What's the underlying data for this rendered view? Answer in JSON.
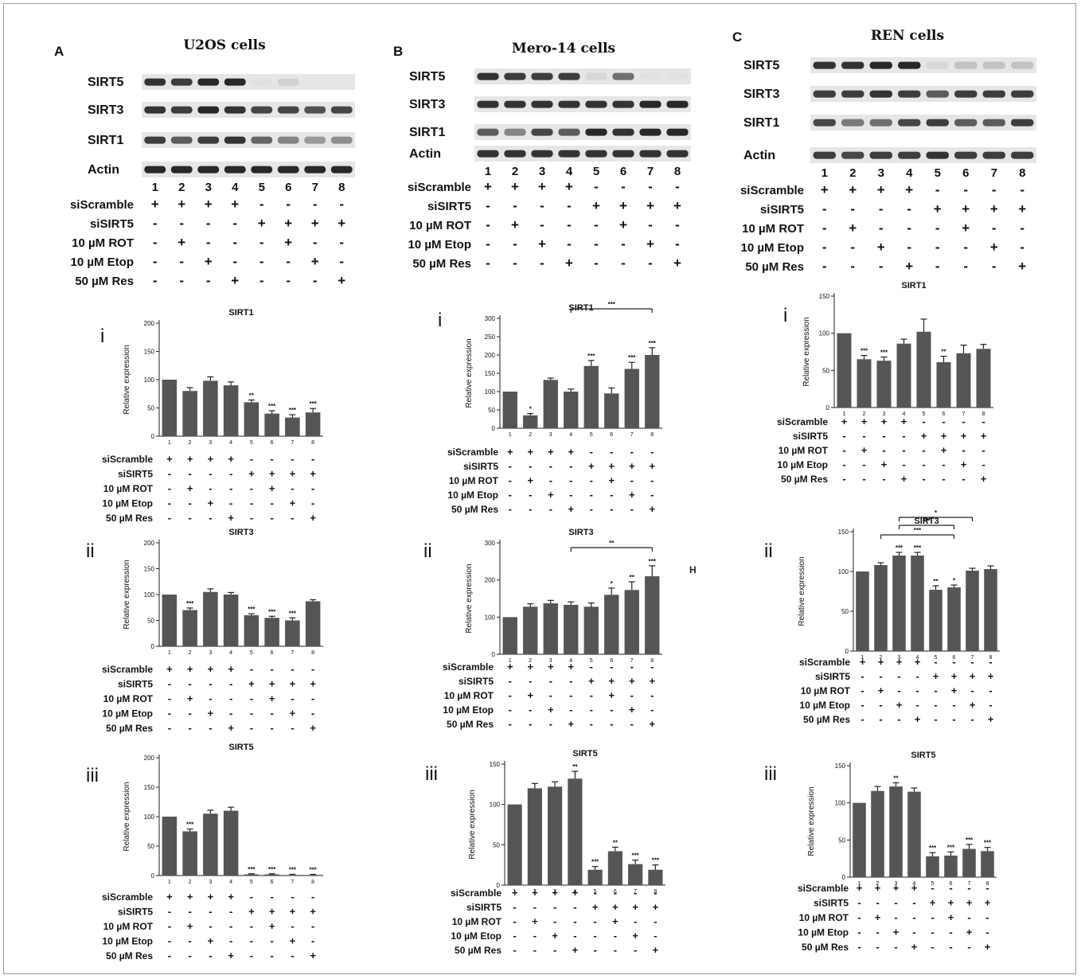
{
  "conditions": {
    "lane_numbers": [
      "1",
      "2",
      "3",
      "4",
      "5",
      "6",
      "7",
      "8"
    ],
    "rows": [
      {
        "label": "siScramble",
        "signs": [
          "+",
          "+",
          "+",
          "+",
          "-",
          "-",
          "-",
          "-"
        ]
      },
      {
        "label": "siSIRT5",
        "signs": [
          "-",
          "-",
          "-",
          "-",
          "+",
          "+",
          "+",
          "+"
        ]
      },
      {
        "label": "10 µM ROT",
        "signs": [
          "-",
          "+",
          "-",
          "-",
          "-",
          "+",
          "-",
          "-"
        ]
      },
      {
        "label": "10 µM Etop",
        "signs": [
          "-",
          "-",
          "+",
          "-",
          "-",
          "-",
          "+",
          "-"
        ]
      },
      {
        "label": "50 µM Res",
        "signs": [
          "-",
          "-",
          "-",
          "+",
          "-",
          "-",
          "-",
          "+"
        ]
      }
    ]
  },
  "panels": [
    {
      "letter": "A",
      "title": "U2OS cells",
      "blot_labels": [
        "SIRT5",
        "SIRT3",
        "SIRT1",
        "Actin"
      ],
      "blot_intensity": [
        [
          0.9,
          0.85,
          0.95,
          0.95,
          0.05,
          0.12,
          0.03,
          0.03
        ],
        [
          0.9,
          0.85,
          0.95,
          0.9,
          0.8,
          0.8,
          0.75,
          0.8
        ],
        [
          0.85,
          0.7,
          0.85,
          0.9,
          0.65,
          0.5,
          0.4,
          0.45
        ],
        [
          0.95,
          0.95,
          0.95,
          0.95,
          0.95,
          0.95,
          0.95,
          0.95
        ]
      ]
    },
    {
      "letter": "B",
      "title": "Mero-14 cells",
      "blot_labels": [
        "SIRT5",
        "SIRT3",
        "SIRT1",
        "Actin"
      ],
      "blot_intensity": [
        [
          0.9,
          0.85,
          0.85,
          0.85,
          0.1,
          0.6,
          0.05,
          0.05
        ],
        [
          0.9,
          0.9,
          0.9,
          0.9,
          0.9,
          0.9,
          0.95,
          0.95
        ],
        [
          0.7,
          0.5,
          0.8,
          0.7,
          0.95,
          0.9,
          0.95,
          0.95
        ],
        [
          0.9,
          0.9,
          0.9,
          0.9,
          0.9,
          0.9,
          0.9,
          0.9
        ]
      ]
    },
    {
      "letter": "C",
      "title": "REN cells",
      "blot_labels": [
        "SIRT5",
        "SIRT3",
        "SIRT1",
        "Actin"
      ],
      "blot_intensity": [
        [
          0.9,
          0.9,
          0.95,
          0.95,
          0.1,
          0.2,
          0.2,
          0.2
        ],
        [
          0.85,
          0.85,
          0.9,
          0.85,
          0.7,
          0.85,
          0.85,
          0.85
        ],
        [
          0.8,
          0.55,
          0.6,
          0.8,
          0.85,
          0.7,
          0.7,
          0.85
        ],
        [
          0.85,
          0.8,
          0.85,
          0.85,
          0.9,
          0.85,
          0.85,
          0.85
        ]
      ]
    }
  ],
  "chart_data": [
    {
      "panel": "A",
      "roman": "i",
      "type": "bar",
      "title": "SIRT1",
      "ylabel": "Relative expression",
      "ylim": [
        0,
        200
      ],
      "yticks": [
        0,
        50,
        100,
        150,
        200
      ],
      "categories": [
        "1",
        "2",
        "3",
        "4",
        "5",
        "6",
        "7",
        "8"
      ],
      "values": [
        100,
        80,
        98,
        90,
        60,
        40,
        33,
        42
      ],
      "errors": [
        0,
        6,
        7,
        6,
        4,
        5,
        5,
        7
      ],
      "sig": [
        "",
        "",
        "",
        "",
        "**",
        "***",
        "***",
        "***"
      ],
      "brackets": []
    },
    {
      "panel": "A",
      "roman": "ii",
      "type": "bar",
      "title": "SIRT3",
      "ylabel": "Relative expression",
      "ylim": [
        0,
        200
      ],
      "yticks": [
        0,
        50,
        100,
        150,
        200
      ],
      "categories": [
        "1",
        "2",
        "3",
        "4",
        "5",
        "6",
        "7",
        "8"
      ],
      "values": [
        100,
        70,
        105,
        100,
        60,
        55,
        50,
        87
      ],
      "errors": [
        0,
        4,
        6,
        4,
        3,
        3,
        5,
        3
      ],
      "sig": [
        "",
        "***",
        "",
        "",
        "***",
        "***",
        "***",
        ""
      ],
      "brackets": []
    },
    {
      "panel": "A",
      "roman": "iii",
      "type": "bar",
      "title": "SIRT5",
      "ylabel": "Relative expression",
      "ylim": [
        0,
        200
      ],
      "yticks": [
        0,
        50,
        100,
        150,
        200
      ],
      "categories": [
        "1",
        "2",
        "3",
        "4",
        "5",
        "6",
        "7",
        "8"
      ],
      "values": [
        100,
        75,
        105,
        110,
        2,
        2,
        1,
        1
      ],
      "errors": [
        0,
        4,
        6,
        6,
        1,
        1,
        1,
        1
      ],
      "sig": [
        "",
        "***",
        "",
        "",
        "***",
        "***",
        "***",
        "***"
      ],
      "brackets": []
    },
    {
      "panel": "B",
      "roman": "i",
      "type": "bar",
      "title": "SIRT1",
      "ylabel": "Relative expression",
      "ylim": [
        0,
        300
      ],
      "yticks": [
        0,
        50,
        100,
        150,
        200,
        250,
        300
      ],
      "categories": [
        "1",
        "2",
        "3",
        "4",
        "5",
        "6",
        "7",
        "8"
      ],
      "values": [
        100,
        35,
        132,
        100,
        170,
        95,
        162,
        200
      ],
      "errors": [
        0,
        5,
        5,
        7,
        15,
        15,
        18,
        20
      ],
      "sig": [
        "",
        "*",
        "",
        "",
        "***",
        "",
        "***",
        "***"
      ],
      "brackets": [
        {
          "from": 4,
          "to": 8,
          "label": "***"
        }
      ]
    },
    {
      "panel": "B",
      "roman": "ii",
      "type": "bar",
      "title": "SIRT3",
      "ylabel": "Relative expression",
      "ylim": [
        0,
        300
      ],
      "yticks": [
        0,
        100,
        200,
        300
      ],
      "categories": [
        "1",
        "2",
        "3",
        "4",
        "5",
        "6",
        "7",
        "8"
      ],
      "values": [
        100,
        128,
        137,
        133,
        128,
        160,
        173,
        210
      ],
      "errors": [
        0,
        8,
        8,
        8,
        10,
        18,
        22,
        28
      ],
      "sig": [
        "",
        "",
        "",
        "",
        "",
        "*",
        "**",
        "***"
      ],
      "brackets": [
        {
          "from": 4,
          "to": 8,
          "label": "**"
        }
      ]
    },
    {
      "panel": "B",
      "roman": "iii",
      "type": "bar",
      "title": "SIRT5",
      "ylabel": "Relative expression",
      "ylim": [
        0,
        150
      ],
      "yticks": [
        0,
        50,
        100,
        150
      ],
      "categories": [
        "1",
        "2",
        "3",
        "4",
        "5",
        "6",
        "7",
        "8"
      ],
      "values": [
        100,
        120,
        122,
        132,
        19,
        42,
        26,
        19
      ],
      "errors": [
        0,
        6,
        6,
        9,
        4,
        5,
        5,
        6
      ],
      "sig": [
        "",
        "",
        "",
        "**",
        "***",
        "**",
        "***",
        "***"
      ],
      "brackets": []
    },
    {
      "panel": "C",
      "roman": "i",
      "type": "bar",
      "title": "SIRT1",
      "ylabel": "Relative expression",
      "ylim": [
        0,
        150
      ],
      "yticks": [
        0,
        50,
        100,
        150
      ],
      "categories": [
        "1",
        "2",
        "3",
        "4",
        "5",
        "6",
        "7",
        "8"
      ],
      "values": [
        100,
        65,
        63,
        86,
        102,
        61,
        73,
        79
      ],
      "errors": [
        0,
        5,
        5,
        6,
        17,
        8,
        11,
        6
      ],
      "sig": [
        "",
        "***",
        "***",
        "",
        "",
        "**",
        "",
        ""
      ],
      "brackets": []
    },
    {
      "panel": "C",
      "roman": "ii",
      "type": "bar",
      "title": "SIRT3",
      "ylabel": "Relative expression",
      "ylim": [
        0,
        150
      ],
      "yticks": [
        0,
        50,
        100,
        150
      ],
      "categories": [
        "1",
        "2",
        "3",
        "4",
        "5",
        "6",
        "7",
        "8"
      ],
      "values": [
        100,
        108,
        120,
        120,
        77,
        80,
        101,
        103
      ],
      "errors": [
        0,
        3,
        4,
        4,
        5,
        3,
        3,
        4
      ],
      "sig": [
        "",
        "",
        "***",
        "***",
        "**",
        "*",
        "",
        ""
      ],
      "brackets": [
        {
          "from": 3,
          "to": 7,
          "label": "*"
        },
        {
          "from": 3,
          "to": 6,
          "label": "***"
        },
        {
          "from": 2,
          "to": 6,
          "label": "***"
        }
      ]
    },
    {
      "panel": "C",
      "roman": "iii",
      "type": "bar",
      "title": "SIRT5",
      "ylabel": "Relative expression",
      "ylim": [
        0,
        150
      ],
      "yticks": [
        0,
        50,
        100,
        150
      ],
      "categories": [
        "1",
        "2",
        "3",
        "4",
        "5",
        "6",
        "7",
        "8"
      ],
      "values": [
        100,
        116,
        122,
        115,
        28,
        29,
        38,
        35
      ],
      "errors": [
        0,
        6,
        5,
        5,
        5,
        5,
        6,
        5
      ],
      "sig": [
        "",
        "",
        "**",
        "",
        "***",
        "***",
        "***",
        "***"
      ],
      "brackets": []
    }
  ],
  "stray_label": "H",
  "colors": {
    "bar": "#555555",
    "axis": "#222222",
    "text": "#111111"
  }
}
